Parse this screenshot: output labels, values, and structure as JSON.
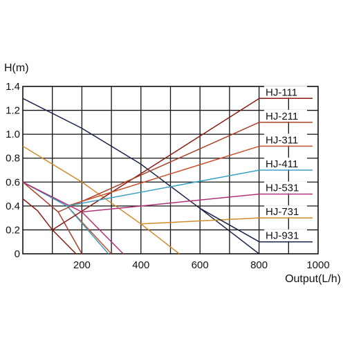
{
  "chart_data": {
    "type": "line",
    "title": "",
    "xlabel": "Output(L/h)",
    "ylabel": "H(m)",
    "xlim": [
      0,
      1000
    ],
    "ylim": [
      0,
      1.4
    ],
    "x_ticks": [
      {
        "value": 200,
        "label": "200"
      },
      {
        "value": 400,
        "label": "400"
      },
      {
        "value": 600,
        "label": "600"
      },
      {
        "value": 800,
        "label": "800"
      },
      {
        "value": 1000,
        "label": "1000"
      }
    ],
    "y_ticks": [
      {
        "value": 0,
        "label": "0"
      },
      {
        "value": 0.2,
        "label": "0.2"
      },
      {
        "value": 0.4,
        "label": "0.4"
      },
      {
        "value": 0.6,
        "label": "0.6"
      },
      {
        "value": 0.8,
        "label": "0.8"
      },
      {
        "value": 1.0,
        "label": "1.0"
      },
      {
        "value": 1.2,
        "label": "1.2"
      },
      {
        "value": 1.4,
        "label": "1.4"
      }
    ],
    "grid": true,
    "legend_position": "top-right",
    "series": [
      {
        "name": "HJ-111",
        "color": "#8a1a12",
        "legend_y": 1.3,
        "points": [
          [
            0,
            0.46
          ],
          [
            50,
            0.36
          ],
          [
            100,
            0.2
          ],
          [
            180,
            0.0
          ]
        ]
      },
      {
        "name": "HJ-211",
        "color": "#a84028",
        "legend_y": 1.1,
        "points": [
          [
            0,
            0.6
          ],
          [
            120,
            0.35
          ],
          [
            200,
            0.0
          ]
        ]
      },
      {
        "name": "HJ-311",
        "color": "#c8502a",
        "legend_y": 0.9,
        "points": [
          [
            0,
            0.6
          ],
          [
            150,
            0.4
          ],
          [
            300,
            0.0
          ]
        ]
      },
      {
        "name": "HJ-411",
        "color": "#3aa0c0",
        "legend_y": 0.7,
        "points": [
          [
            0,
            0.6
          ],
          [
            150,
            0.4
          ],
          [
            290,
            0.0
          ]
        ]
      },
      {
        "name": "HJ-531",
        "color": "#b0307a",
        "legend_y": 0.5,
        "points": [
          [
            0,
            0.6
          ],
          [
            200,
            0.35
          ],
          [
            340,
            0.0
          ]
        ]
      },
      {
        "name": "HJ-731",
        "color": "#d08a28",
        "legend_y": 0.3,
        "points": [
          [
            0,
            0.9
          ],
          [
            200,
            0.6
          ],
          [
            400,
            0.25
          ],
          [
            530,
            0.0
          ]
        ]
      },
      {
        "name": "HJ-931",
        "color": "#1a2448",
        "legend_y": 0.1,
        "points": [
          [
            0,
            1.3
          ],
          [
            200,
            1.05
          ],
          [
            400,
            0.75
          ],
          [
            600,
            0.38
          ],
          [
            800,
            0.0
          ]
        ]
      }
    ]
  }
}
